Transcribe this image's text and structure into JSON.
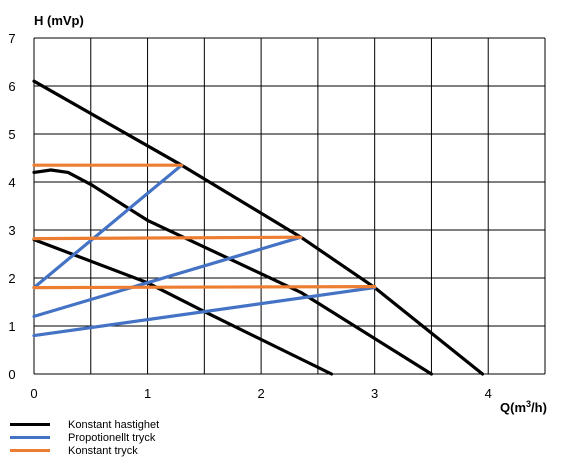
{
  "chart_data": {
    "type": "line",
    "title": "",
    "ylabel": "H (mVp)",
    "xlabel": "Q(m³/h)",
    "xlabel_parts": {
      "prefix": "Q(m",
      "sup": "3",
      "suffix": "/h)"
    },
    "xlim": [
      0,
      4.5
    ],
    "ylim": [
      0,
      7
    ],
    "x_ticks": [
      0,
      1,
      2,
      3,
      4
    ],
    "y_ticks": [
      0,
      1,
      2,
      3,
      4,
      5,
      6,
      7
    ],
    "grid": true,
    "legend_position": "bottom-left",
    "series": [
      {
        "name": "Konstant hastighet",
        "color": "#000000",
        "lines": [
          [
            [
              0,
              6.1
            ],
            [
              1.3,
              4.35
            ],
            [
              2.35,
              2.85
            ],
            [
              3.0,
              1.8
            ],
            [
              3.95,
              0
            ]
          ],
          [
            [
              0,
              4.2
            ],
            [
              0.15,
              4.25
            ],
            [
              0.3,
              4.2
            ],
            [
              0.5,
              3.95
            ],
            [
              1.0,
              3.2
            ],
            [
              2.35,
              1.7
            ],
            [
              3.5,
              0
            ]
          ],
          [
            [
              0,
              2.8
            ],
            [
              1.0,
              1.9
            ],
            [
              1.5,
              1.3
            ],
            [
              2.62,
              0
            ]
          ]
        ]
      },
      {
        "name": "Propotionellt tryck",
        "color": "#4472c4",
        "lines": [
          [
            [
              0,
              1.8
            ],
            [
              1.3,
              4.35
            ]
          ],
          [
            [
              0,
              1.2
            ],
            [
              2.35,
              2.85
            ]
          ],
          [
            [
              0,
              0.8
            ],
            [
              3.0,
              1.8
            ]
          ]
        ]
      },
      {
        "name": "Konstant tryck",
        "color": "#ed7d31",
        "lines": [
          [
            [
              0,
              4.35
            ],
            [
              1.3,
              4.35
            ]
          ],
          [
            [
              0,
              2.82
            ],
            [
              2.35,
              2.85
            ]
          ],
          [
            [
              0,
              1.8
            ],
            [
              3.0,
              1.82
            ]
          ]
        ]
      }
    ]
  }
}
